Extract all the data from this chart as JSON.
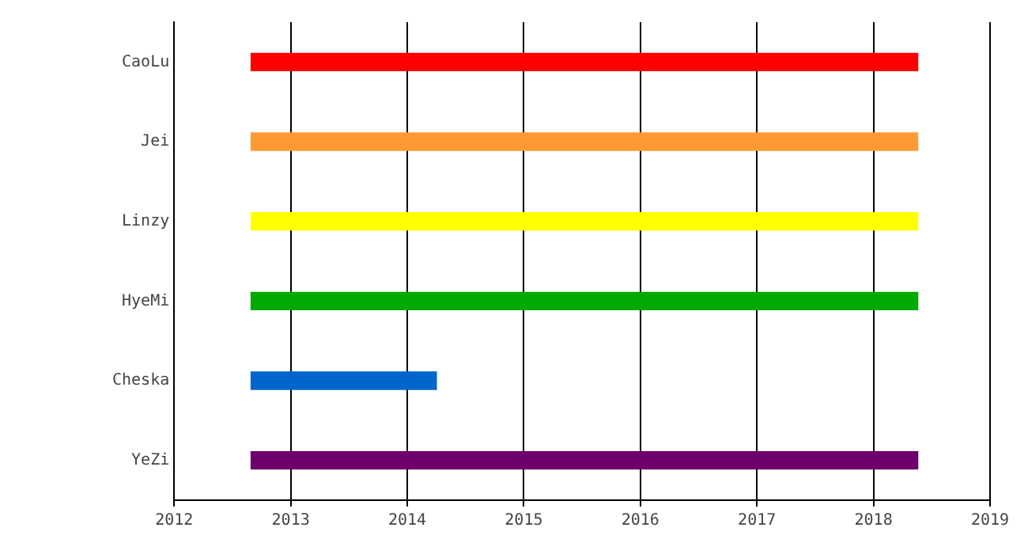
{
  "chart_data": {
    "type": "bar",
    "orientation": "horizontal",
    "categories": [
      "CaoLu",
      "Jei",
      "Linzy",
      "HyeMi",
      "Cheska",
      "YeZi"
    ],
    "base": [
      2012.66,
      2012.66,
      2012.66,
      2012.66,
      2012.66,
      2012.66
    ],
    "values": [
      5.72,
      5.72,
      5.72,
      5.72,
      1.59,
      5.72
    ],
    "colors": [
      "#ff0000",
      "#ff9933",
      "#ffff00",
      "#00aa00",
      "#0066cc",
      "#6e006e"
    ],
    "xlim": [
      2012,
      2019
    ],
    "xticks": [
      2012,
      2013,
      2014,
      2015,
      2016,
      2017,
      2018,
      2019
    ],
    "grid": "x",
    "legend": false
  }
}
